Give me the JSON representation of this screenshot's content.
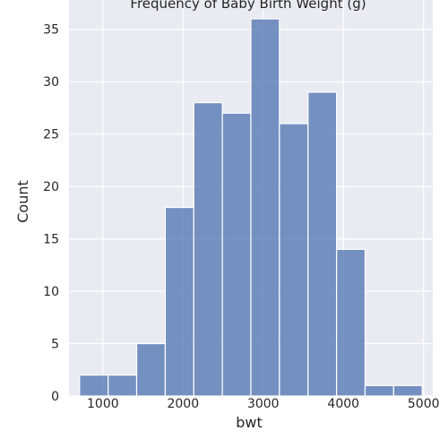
{
  "chart_data": {
    "type": "bar",
    "title": "Frequency of Baby Birth Weight (g)",
    "xlabel": "bwt",
    "ylabel": "Count",
    "bins": [
      {
        "start": 709,
        "end": 1065,
        "count": 2
      },
      {
        "start": 1065,
        "end": 1421,
        "count": 2
      },
      {
        "start": 1421,
        "end": 1778,
        "count": 5
      },
      {
        "start": 1778,
        "end": 2134,
        "count": 18
      },
      {
        "start": 2134,
        "end": 2490,
        "count": 28
      },
      {
        "start": 2490,
        "end": 2846,
        "count": 27
      },
      {
        "start": 2846,
        "end": 3202,
        "count": 36
      },
      {
        "start": 3202,
        "end": 3559,
        "count": 26
      },
      {
        "start": 3559,
        "end": 3915,
        "count": 29
      },
      {
        "start": 3915,
        "end": 4271,
        "count": 14
      },
      {
        "start": 4271,
        "end": 4627,
        "count": 1
      },
      {
        "start": 4627,
        "end": 4983,
        "count": 1
      }
    ],
    "xticks": [
      1000,
      2000,
      3000,
      4000,
      5000
    ],
    "yticks": [
      0,
      5,
      10,
      15,
      20,
      25,
      30,
      35
    ],
    "xlim": [
      577,
      5115
    ],
    "ylim": [
      0,
      37.8
    ],
    "grid": true,
    "bar_color": "#4c72b0",
    "background_color": "#eaeaf2",
    "grid_color": "#ffffff"
  }
}
